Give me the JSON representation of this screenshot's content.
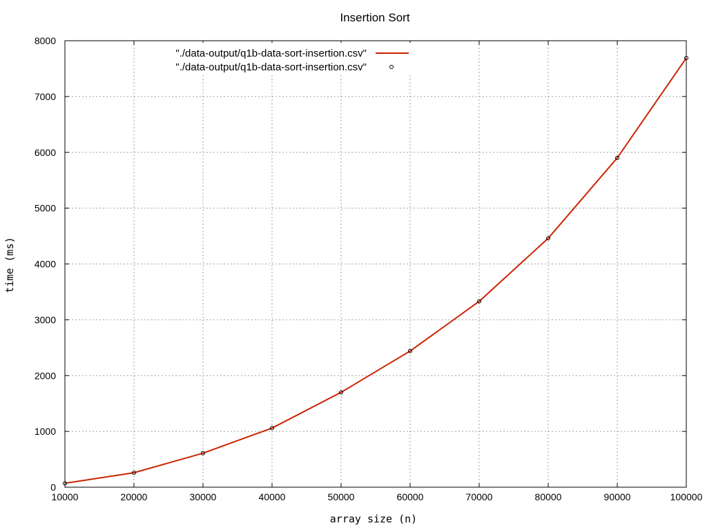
{
  "chart_data": {
    "type": "line",
    "title": "Insertion Sort",
    "xlabel": "array size (n)",
    "ylabel": "time (ms)",
    "xlim": [
      10000,
      100000
    ],
    "ylim": [
      0,
      8000
    ],
    "xticks": [
      10000,
      20000,
      30000,
      40000,
      50000,
      60000,
      70000,
      80000,
      90000,
      100000
    ],
    "yticks": [
      0,
      1000,
      2000,
      3000,
      4000,
      5000,
      6000,
      7000,
      8000
    ],
    "grid": true,
    "legend_position": "top-left",
    "series": [
      {
        "name": "\"./data-output/q1b-data-sort-insertion.csv\"",
        "style": "line",
        "color": "#cc2200",
        "x": [
          10000,
          20000,
          30000,
          40000,
          50000,
          60000,
          70000,
          80000,
          90000,
          100000
        ],
        "y": [
          70,
          260,
          610,
          1060,
          1700,
          2440,
          3330,
          4460,
          5900,
          7690
        ]
      },
      {
        "name": "\"./data-output/q1b-data-sort-insertion.csv\"",
        "style": "points",
        "color": "#000000",
        "x": [
          10000,
          20000,
          30000,
          40000,
          50000,
          60000,
          70000,
          80000,
          90000,
          100000
        ],
        "y": [
          70,
          260,
          610,
          1060,
          1700,
          2440,
          3330,
          4460,
          5900,
          7690
        ]
      }
    ]
  }
}
